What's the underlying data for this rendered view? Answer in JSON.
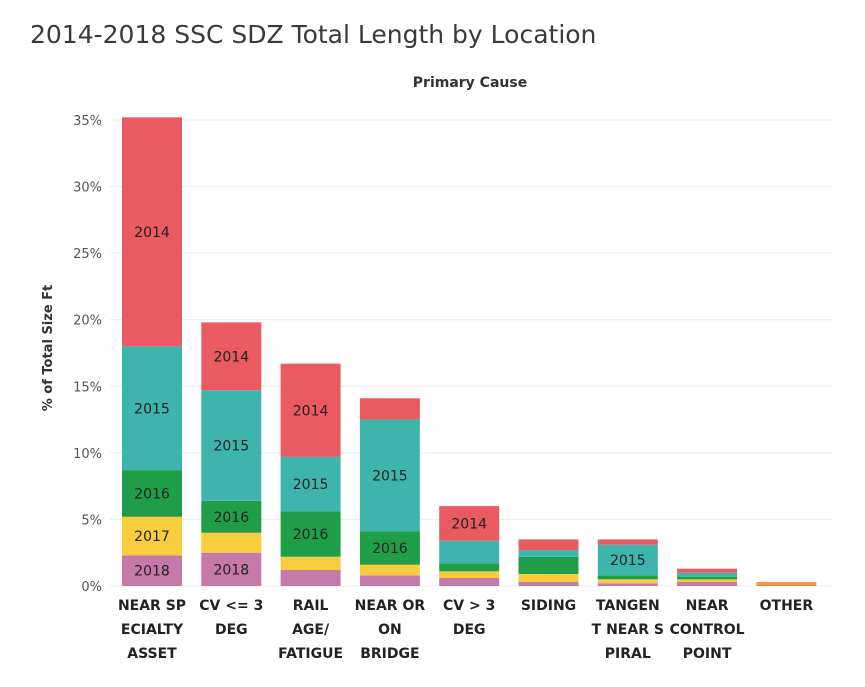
{
  "chart_data": {
    "type": "bar",
    "stacked": true,
    "title": "2014-2018 SSC SDZ Total Length by Location",
    "column_header": "Primary Cause",
    "ylabel": "% of Total Size Ft",
    "xlabel": "",
    "ylim": [
      0,
      35
    ],
    "yticks": [
      0,
      5,
      10,
      15,
      20,
      25,
      30,
      35
    ],
    "ytick_labels": [
      "0%",
      "5%",
      "10%",
      "15%",
      "20%",
      "25%",
      "30%",
      "35%"
    ],
    "grid": true,
    "categories": [
      [
        "NEAR SP",
        "ECIALTY",
        "ASSET"
      ],
      [
        "CV <= 3",
        "DEG"
      ],
      [
        "RAIL",
        "AGE/",
        "FATIGUE"
      ],
      [
        "NEAR OR",
        "ON",
        "BRIDGE"
      ],
      [
        "CV > 3",
        "DEG"
      ],
      [
        "SIDING"
      ],
      [
        "TANGEN",
        "T NEAR S",
        "PIRAL"
      ],
      [
        "NEAR",
        "CONTROL",
        "POINT"
      ],
      [
        "OTHER"
      ]
    ],
    "series": [
      {
        "name": "2018",
        "color": "#c678a8",
        "values": [
          2.3,
          2.5,
          1.2,
          0.8,
          0.6,
          0.3,
          0.2,
          0.3,
          0.1
        ],
        "labels": [
          "2018",
          "2018",
          "",
          "",
          "",
          "",
          "",
          "",
          ""
        ]
      },
      {
        "name": "2017",
        "color": "#f8cc3c",
        "values": [
          2.9,
          1.5,
          1.0,
          0.8,
          0.5,
          0.6,
          0.3,
          0.2,
          0.05
        ],
        "labels": [
          "2017",
          "",
          "",
          "",
          "",
          "",
          "",
          "",
          ""
        ]
      },
      {
        "name": "2016",
        "color": "#1f9e4a",
        "values": [
          3.5,
          2.4,
          3.4,
          2.5,
          0.6,
          1.3,
          0.3,
          0.2,
          0.05
        ],
        "labels": [
          "2016",
          "2016",
          "2016",
          "2016",
          "",
          "",
          "",
          "",
          ""
        ]
      },
      {
        "name": "2015",
        "color": "#3db5ad",
        "values": [
          9.3,
          8.3,
          4.1,
          8.4,
          1.7,
          0.5,
          2.3,
          0.3,
          0.05
        ],
        "labels": [
          "2015",
          "2015",
          "2015",
          "2015",
          "",
          "",
          "2015",
          "",
          ""
        ]
      },
      {
        "name": "2014",
        "color": "#ea5a62",
        "values": [
          17.2,
          5.1,
          7.0,
          1.6,
          2.6,
          0.8,
          0.4,
          0.3,
          0.05
        ],
        "labels": [
          "2014",
          "2014",
          "2014",
          "",
          "2014",
          "",
          "",
          "",
          ""
        ]
      }
    ],
    "other_bar_color": "#f08a38"
  }
}
